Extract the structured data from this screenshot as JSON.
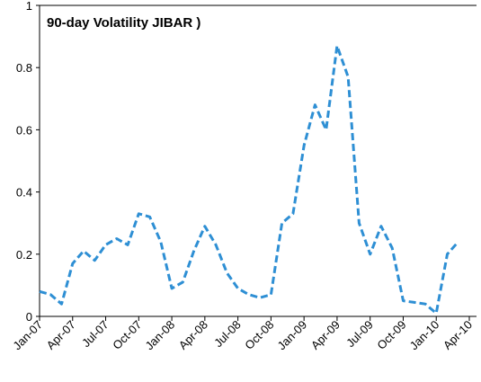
{
  "chart_data": {
    "type": "line",
    "title": "90-day Volatility JIBAR )",
    "categories": [
      "Jan-07",
      null,
      null,
      "Apr-07",
      null,
      null,
      "Jul-07",
      null,
      null,
      "Oct-07",
      null,
      null,
      "Jan-08",
      null,
      null,
      "Apr-08",
      null,
      null,
      "Jul-08",
      null,
      null,
      "Oct-08",
      null,
      null,
      "Jan-09",
      null,
      null,
      "Apr-09",
      null,
      null,
      "Jul-09",
      null,
      null,
      "Oct-09",
      null,
      null,
      "Jan-10",
      null,
      null,
      "Apr-10"
    ],
    "series": [
      {
        "color": "#2e8fd4",
        "values": [
          0.08,
          0.07,
          0.04,
          0.17,
          0.21,
          0.18,
          0.23,
          0.25,
          0.23,
          0.33,
          0.32,
          0.24,
          0.09,
          0.11,
          0.21,
          0.29,
          0.23,
          0.14,
          0.09,
          0.07,
          0.06,
          0.07,
          0.3,
          0.33,
          0.55,
          0.68,
          0.6,
          0.87,
          0.77,
          0.3,
          0.2,
          0.29,
          0.22,
          0.05,
          0.045,
          0.04,
          0.01,
          0.2,
          0.24,
          null
        ]
      }
    ],
    "ylim": [
      0,
      1
    ],
    "yticks": [
      0,
      0.2,
      0.4,
      0.6,
      0.8,
      1
    ]
  }
}
